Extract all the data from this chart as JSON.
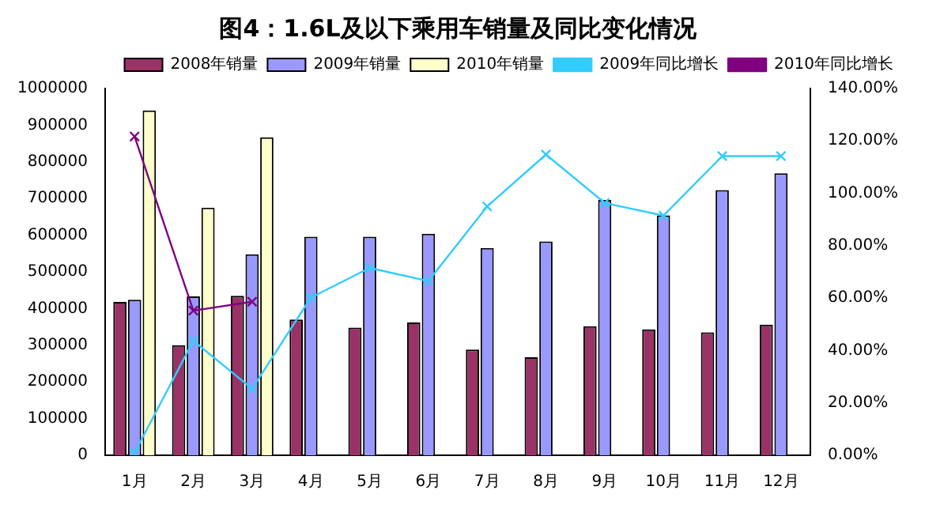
{
  "chart_data": {
    "type": "bar",
    "title": "图4：1.6L及以下乘用车销量及同比变化情况",
    "categories": [
      "1月",
      "2月",
      "3月",
      "4月",
      "5月",
      "6月",
      "7月",
      "8月",
      "9月",
      "10月",
      "11月",
      "12月"
    ],
    "series": [
      {
        "name": "2008年销量",
        "color": "#993366",
        "values": [
          418000,
          300000,
          435000,
          370000,
          348000,
          362000,
          288000,
          267000,
          352000,
          343000,
          335000,
          356000
        ]
      },
      {
        "name": "2009年销量",
        "color": "#9999ff",
        "values": [
          424000,
          433000,
          548000,
          596000,
          596000,
          604000,
          565000,
          583000,
          696000,
          654000,
          723000,
          769000
        ]
      },
      {
        "name": "2010年销量",
        "color": "#ffffcc",
        "values": [
          940000,
          675000,
          867000,
          null,
          null,
          null,
          null,
          null,
          null,
          null,
          null,
          null
        ]
      },
      {
        "name": "2009年同比增长",
        "type": "line",
        "axis": "y2",
        "marker": "cross",
        "color": "#33ccff",
        "values": [
          1,
          43.7,
          25.4,
          60.2,
          71.5,
          66.5,
          95,
          114.8,
          96.3,
          91.5,
          114.2,
          114.2
        ]
      },
      {
        "name": "2010年同比增长",
        "type": "line",
        "axis": "y2",
        "marker": "cross",
        "color": "#800080",
        "values": [
          121.7,
          55.2,
          58.6,
          null,
          null,
          null,
          null,
          null,
          null,
          null,
          null,
          null
        ]
      }
    ],
    "ylim": [
      0,
      1000000
    ],
    "yticks": [
      0,
      100000,
      200000,
      300000,
      400000,
      500000,
      600000,
      700000,
      800000,
      900000,
      1000000
    ],
    "y2lim": [
      0,
      140
    ],
    "y2ticks": [
      {
        "value": 0,
        "label": "0.00%"
      },
      {
        "value": 20,
        "label": "20.00%"
      },
      {
        "value": 40,
        "label": "40.00%"
      },
      {
        "value": 60,
        "label": "60.00%"
      },
      {
        "value": 80,
        "label": "80.00%"
      },
      {
        "value": 100,
        "label": "100.00%"
      },
      {
        "value": 120,
        "label": "120.00%"
      },
      {
        "value": 140,
        "label": "140.00%"
      }
    ],
    "grid": false,
    "legend": "top right",
    "line_style": "solid"
  }
}
